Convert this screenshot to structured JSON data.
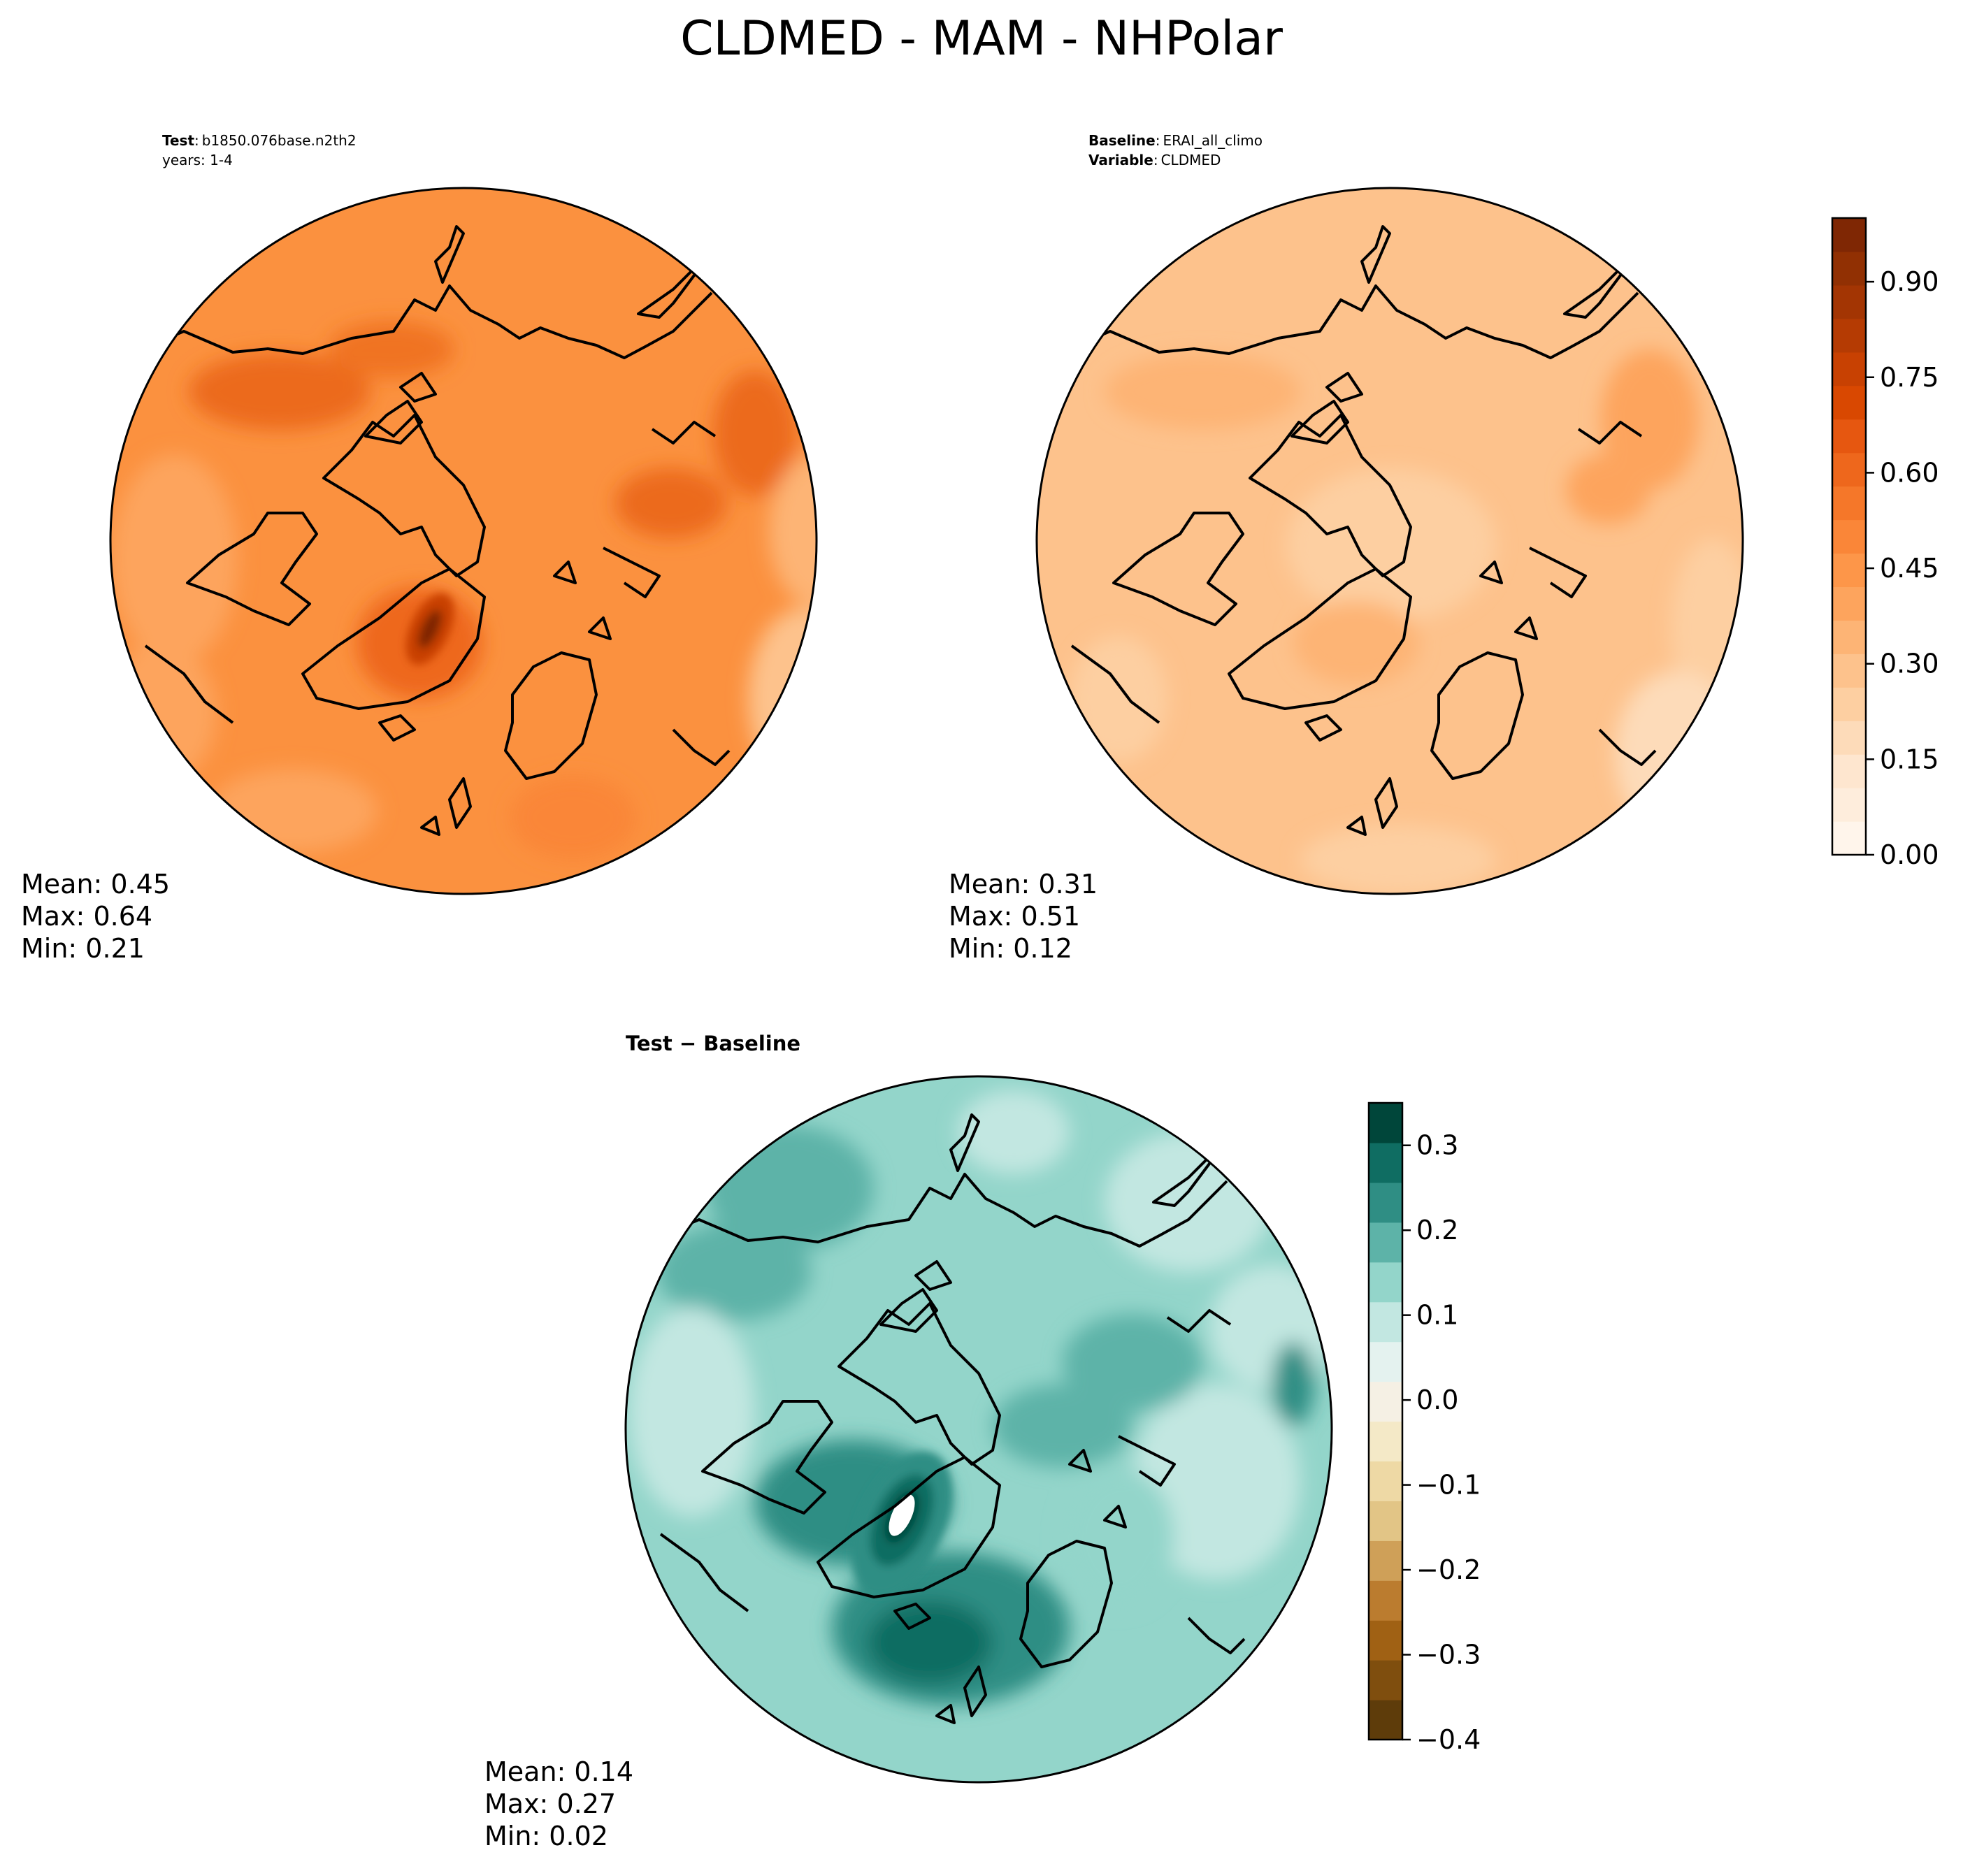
{
  "figure": {
    "title": "CLDMED - MAM - NHPolar"
  },
  "chart_data": [
    {
      "type": "heatmap",
      "panel": "test",
      "header": [
        {
          "bold": "Test",
          "sep": ":",
          "text": "b1850.076base.n2th2"
        },
        {
          "bold": "",
          "sep": "",
          "text": "years: 1-4"
        }
      ],
      "stats": {
        "mean": "Mean:  0.45",
        "max": "Max:  0.64",
        "min": "Min:  0.21"
      },
      "values": {
        "mean": 0.45,
        "max": 0.64,
        "min": 0.21
      },
      "colormap": "Oranges"
    },
    {
      "type": "heatmap",
      "panel": "baseline",
      "header": [
        {
          "bold": "Baseline",
          "sep": ":",
          "text": "ERAI_all_climo"
        },
        {
          "bold": "Variable",
          "sep": ":",
          "text": "CLDMED"
        }
      ],
      "stats": {
        "mean": "Mean:  0.31",
        "max": "Max:  0.51",
        "min": "Min:  0.12"
      },
      "values": {
        "mean": 0.31,
        "max": 0.51,
        "min": 0.12
      },
      "colormap": "Oranges",
      "colorbar": {
        "range": [
          0,
          1.0
        ],
        "step": 0.05,
        "ticks": [
          "0.00",
          "0.15",
          "0.30",
          "0.45",
          "0.60",
          "0.75",
          "0.90"
        ],
        "tick_values": [
          0,
          0.15,
          0.3,
          0.45,
          0.6,
          0.75,
          0.9
        ]
      }
    },
    {
      "type": "heatmap",
      "panel": "difference",
      "header": [
        {
          "bold": "Test − Baseline",
          "sep": "",
          "text": ""
        }
      ],
      "stats": {
        "mean": "Mean:  0.14",
        "max": "Max:  0.27",
        "min": "Min:  0.02"
      },
      "values": {
        "mean": 0.14,
        "max": 0.27,
        "min": 0.02
      },
      "colormap": "BrBG",
      "colorbar": {
        "range": [
          -0.4,
          0.35
        ],
        "step": 0.05,
        "ticks": [
          "−0.4",
          "−0.3",
          "−0.2",
          "−0.1",
          "0.0",
          "0.1",
          "0.2",
          "0.3"
        ],
        "tick_values": [
          -0.4,
          -0.3,
          -0.2,
          -0.1,
          0,
          0.1,
          0.2,
          0.3
        ]
      }
    }
  ],
  "colors": {
    "oranges": [
      "#fff5eb",
      "#feeddc",
      "#fee6cf",
      "#fddbb9",
      "#fdcfa1",
      "#fdc28c",
      "#fdb475",
      "#fda45d",
      "#fd9649",
      "#fa8638",
      "#f57729",
      "#ee671c",
      "#e65710",
      "#d94801",
      "#c84102",
      "#b53b03",
      "#a33503",
      "#913003",
      "#7f2704"
    ],
    "brbg": [
      "#5e3c0a",
      "#7f4e0e",
      "#a06114",
      "#bb7c2f",
      "#cfa058",
      "#e2c586",
      "#eed9a5",
      "#f4e9c7",
      "#f5f0e4",
      "#e4f2ef",
      "#c2e7e1",
      "#93d5ca",
      "#5db3a8",
      "#2f8e84",
      "#0f6d62",
      "#00463a"
    ],
    "coastline": "#000000"
  }
}
